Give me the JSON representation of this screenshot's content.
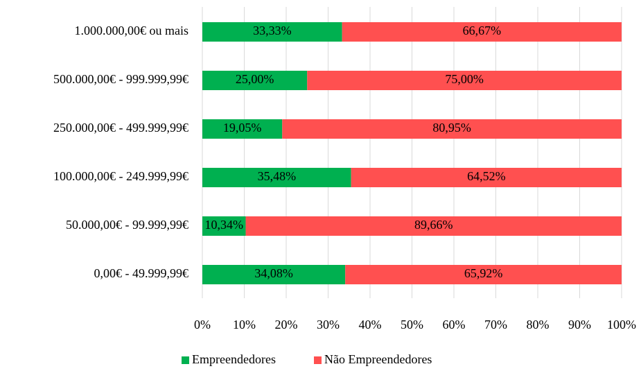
{
  "chart_data": {
    "type": "stacked_barh",
    "categories": [
      "1.000.000,00€ ou mais",
      "500.000,00€ - 999.999,99€",
      "250.000,00€ - 499.999,99€",
      "100.000,00€ - 249.999,99€",
      "50.000,00€ - 99.999,99€",
      "0,00€ - 49.999,99€"
    ],
    "series": [
      {
        "name": "Empreendedores",
        "color": "#00b050",
        "values": [
          33.33,
          25,
          19.05,
          35.48,
          10.34,
          34.08
        ],
        "value_labels": [
          "33,33%",
          "25,00%",
          "19,05%",
          "35,48%",
          "10,34%",
          "34,08%"
        ]
      },
      {
        "name": "Não Empreendedores",
        "color": "#ff5050",
        "values": [
          66.67,
          75,
          80.95,
          64.52,
          89.66,
          65.92
        ],
        "value_labels": [
          "66,67%",
          "75,00%",
          "80,95%",
          "64,52%",
          "89,66%",
          "65,92%"
        ]
      }
    ],
    "xlim": [
      0,
      100
    ],
    "xticks": [
      {
        "value": 0,
        "label": "0%"
      },
      {
        "value": 10,
        "label": "10%"
      },
      {
        "value": 20,
        "label": "20%"
      },
      {
        "value": 30,
        "label": "30%"
      },
      {
        "value": 40,
        "label": "40%"
      },
      {
        "value": 50,
        "label": "50%"
      },
      {
        "value": 60,
        "label": "60%"
      },
      {
        "value": 70,
        "label": "70%"
      },
      {
        "value": 80,
        "label": "80%"
      },
      {
        "value": 90,
        "label": "90%"
      },
      {
        "value": 100,
        "label": "100%"
      }
    ],
    "grid": true,
    "legend": "bottom"
  }
}
